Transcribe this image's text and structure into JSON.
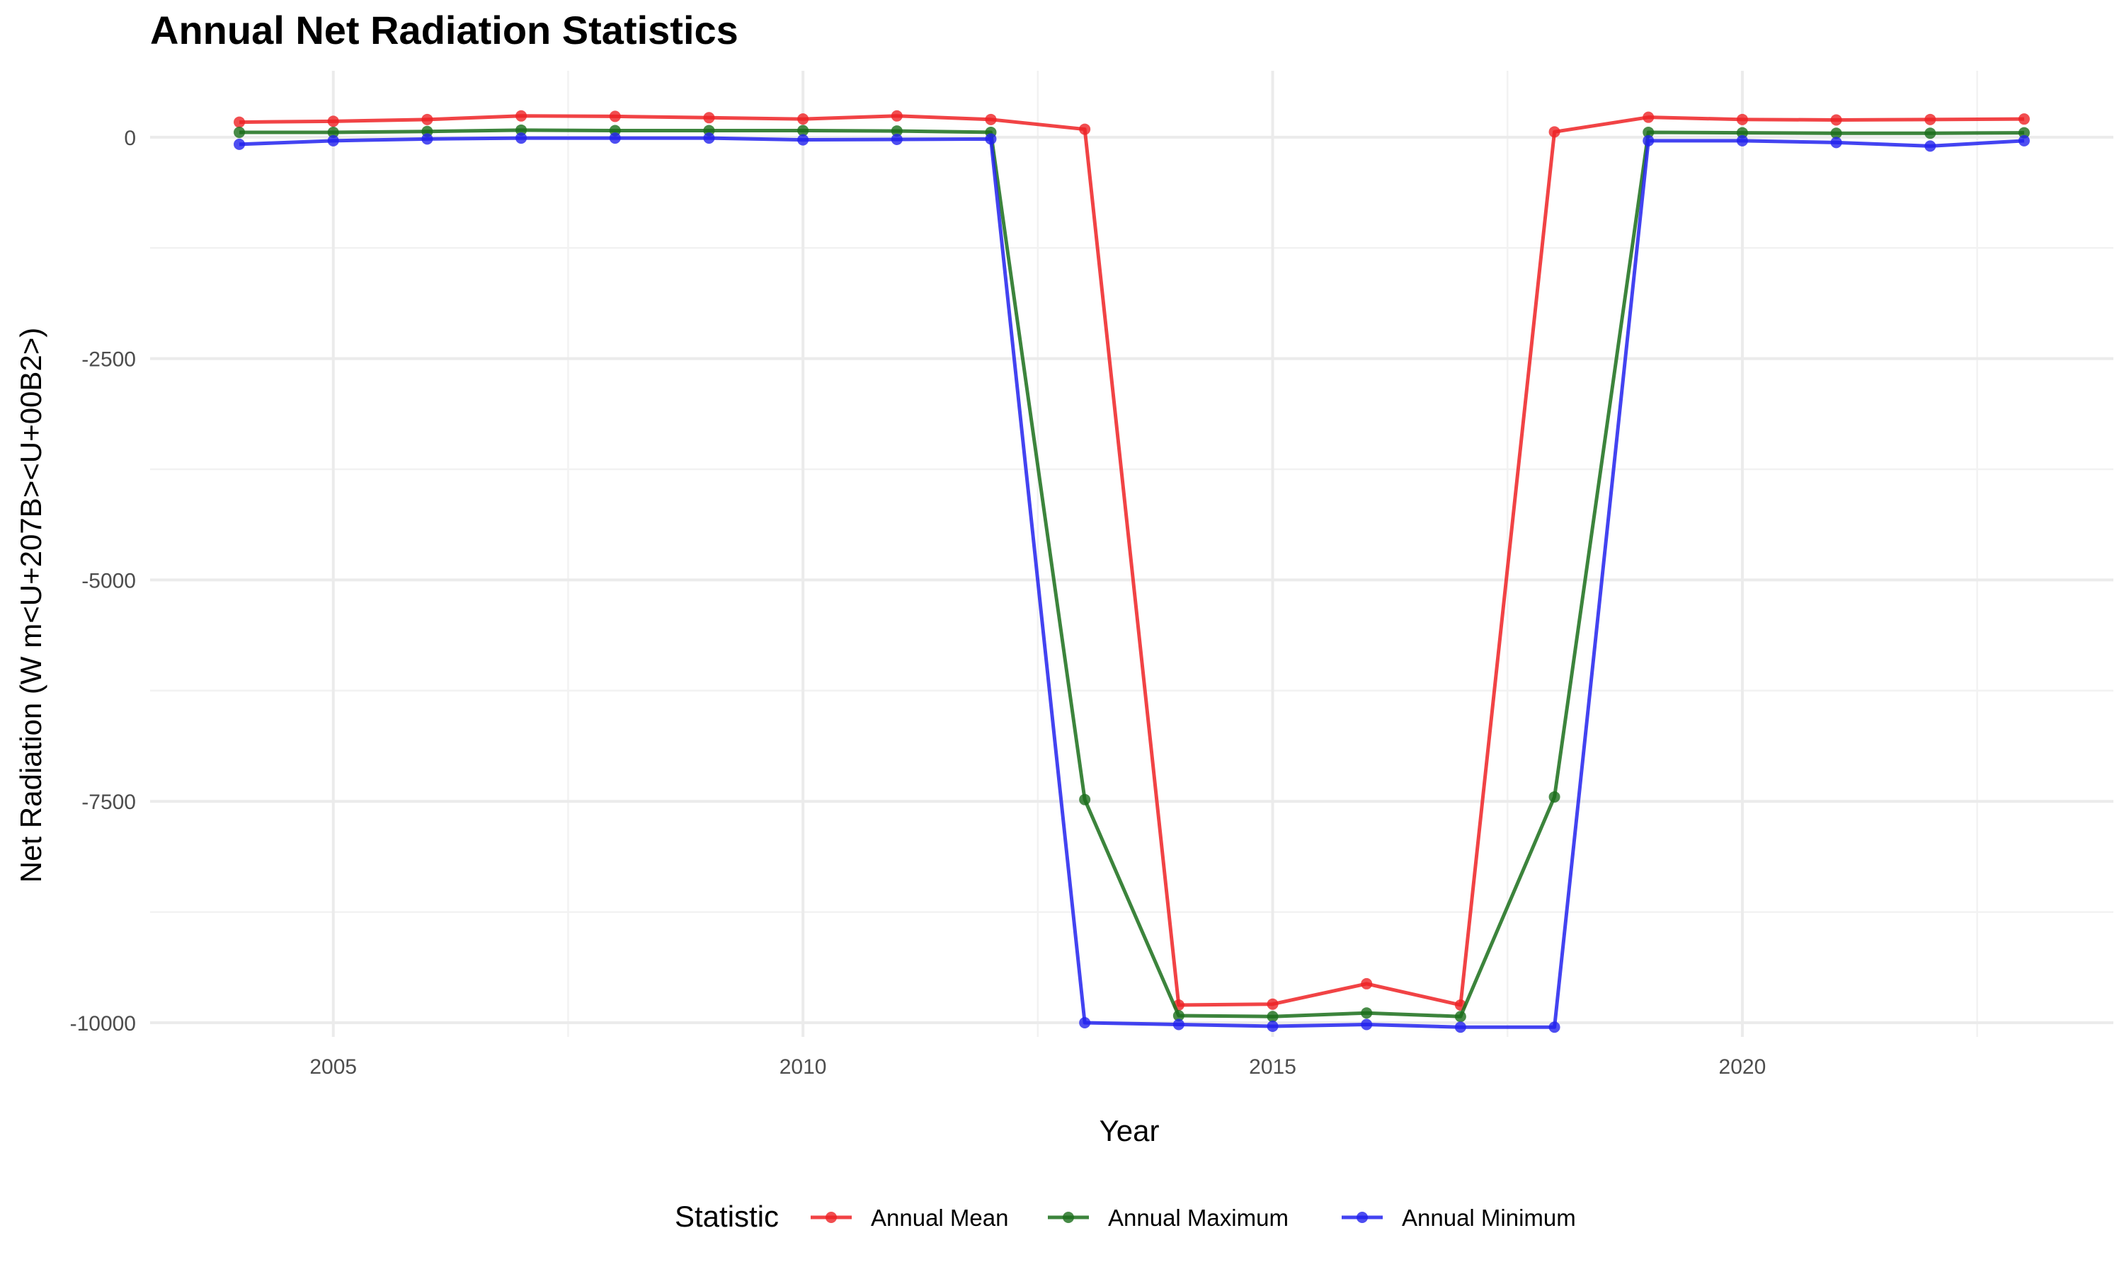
{
  "chart_data": {
    "type": "line",
    "title": "Annual Net Radiation Statistics",
    "xlabel": "Year",
    "ylabel": "Net Radiation (W m<U+207B><U+00B2>)",
    "x": [
      2004,
      2005,
      2006,
      2007,
      2008,
      2009,
      2010,
      2011,
      2012,
      2013,
      2014,
      2015,
      2016,
      2017,
      2018,
      2019,
      2020,
      2021,
      2022,
      2023
    ],
    "xlim": [
      2003.05,
      2023.95
    ],
    "ylim": [
      -10160,
      750
    ],
    "x_ticks": [
      2005,
      2010,
      2015,
      2020
    ],
    "x_tick_labels": [
      "2005",
      "2010",
      "2015",
      "2020"
    ],
    "x_minor_ticks": [
      2007.5,
      2012.5,
      2017.5,
      2022.5
    ],
    "y_ticks": [
      0,
      -2500,
      -5000,
      -7500,
      -10000
    ],
    "y_tick_labels": [
      "0",
      "-2500",
      "-5000",
      "-7500",
      "-10000"
    ],
    "y_minor_ticks": [
      -1250,
      -3750,
      -6250,
      -8750
    ],
    "grid": true,
    "legend": {
      "title": "Statistic",
      "position": "bottom"
    },
    "series": [
      {
        "name": "Annual Mean",
        "color": "#ee2224",
        "values": [
          170,
          180,
          200,
          240,
          235,
          220,
          205,
          240,
          200,
          90,
          -9800,
          -9790,
          -9560,
          -9800,
          60,
          225,
          200,
          195,
          200,
          205
        ]
      },
      {
        "name": "Annual Maximum",
        "color": "#1a6e1a",
        "values": [
          55,
          55,
          65,
          80,
          75,
          75,
          75,
          70,
          55,
          -7480,
          -9920,
          -9930,
          -9890,
          -9930,
          -7450,
          55,
          50,
          45,
          45,
          50
        ]
      },
      {
        "name": "Annual Minimum",
        "color": "#2222ee",
        "values": [
          -80,
          -40,
          -20,
          -10,
          -10,
          -10,
          -30,
          -25,
          -20,
          -10000,
          -10020,
          -10040,
          -10020,
          -10050,
          -10050,
          -40,
          -40,
          -60,
          -100,
          -40
        ]
      }
    ]
  }
}
